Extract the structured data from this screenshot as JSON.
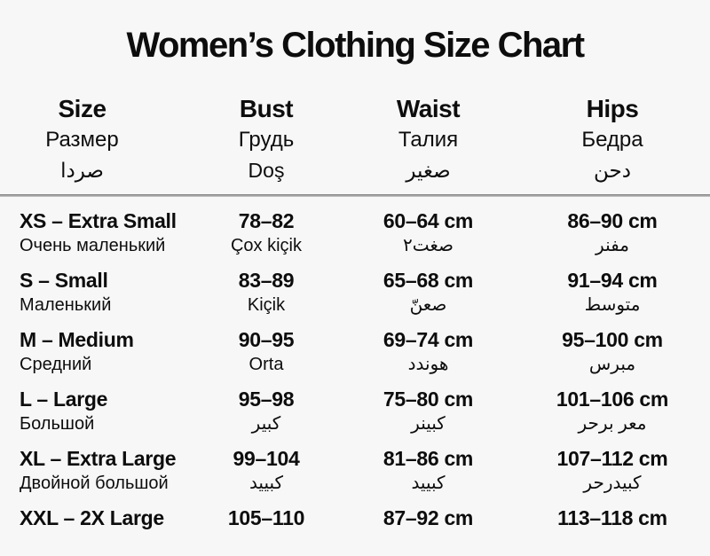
{
  "title": "Women’s Clothing Size Chart",
  "columns": {
    "size": {
      "en": "Size",
      "ru": "Размер",
      "ar": "صردا"
    },
    "bust": {
      "en": "Bust",
      "ru": "Грудь",
      "ar": "Doş"
    },
    "waist": {
      "en": "Waist",
      "ru": "Талия",
      "ar": "صغير"
    },
    "hips": {
      "en": "Hips",
      "ru": "Бедра",
      "ar": "دحن"
    }
  },
  "rows": [
    {
      "size": "XS – Extra Small",
      "size_sub": "Очень маленький",
      "bust": "78–82",
      "bust_sub": "Çox kiçik",
      "waist": "60–64 cm",
      "waist_sub": "صغت٢",
      "hips": "86–90 cm",
      "hips_sub": "مفنر"
    },
    {
      "size": "S – Small",
      "size_sub": "Маленький",
      "bust": "83–89",
      "bust_sub": "Kiçik",
      "waist": "65–68 cm",
      "waist_sub": "صعنّ",
      "hips": "91–94 cm",
      "hips_sub": "متوسط"
    },
    {
      "size": "M – Medium",
      "size_sub": "Средний",
      "bust": "90–95",
      "bust_sub": "Orta",
      "waist": "69–74 cm",
      "waist_sub": "هوندد",
      "hips": "95–100 cm",
      "hips_sub": "مبرس"
    },
    {
      "size": "L – Large",
      "size_sub": "Большой",
      "bust": "95–98",
      "bust_sub": "كبير",
      "waist": "75–80 cm",
      "waist_sub": "كبينر",
      "hips": "101–106 cm",
      "hips_sub": "معر برحر"
    },
    {
      "size": "XL – Extra Large",
      "size_sub": "Двойной большой",
      "bust": "99–104",
      "bust_sub": "كبييد",
      "waist": "81–86 cm",
      "waist_sub": "كبييد",
      "hips": "107–112 cm",
      "hips_sub": "كبيدرحر"
    },
    {
      "size": "XXL – 2X Large",
      "size_sub": "",
      "bust": "105–110",
      "bust_sub": "",
      "waist": "87–92 cm",
      "waist_sub": "",
      "hips": "113–118 cm",
      "hips_sub": ""
    }
  ]
}
